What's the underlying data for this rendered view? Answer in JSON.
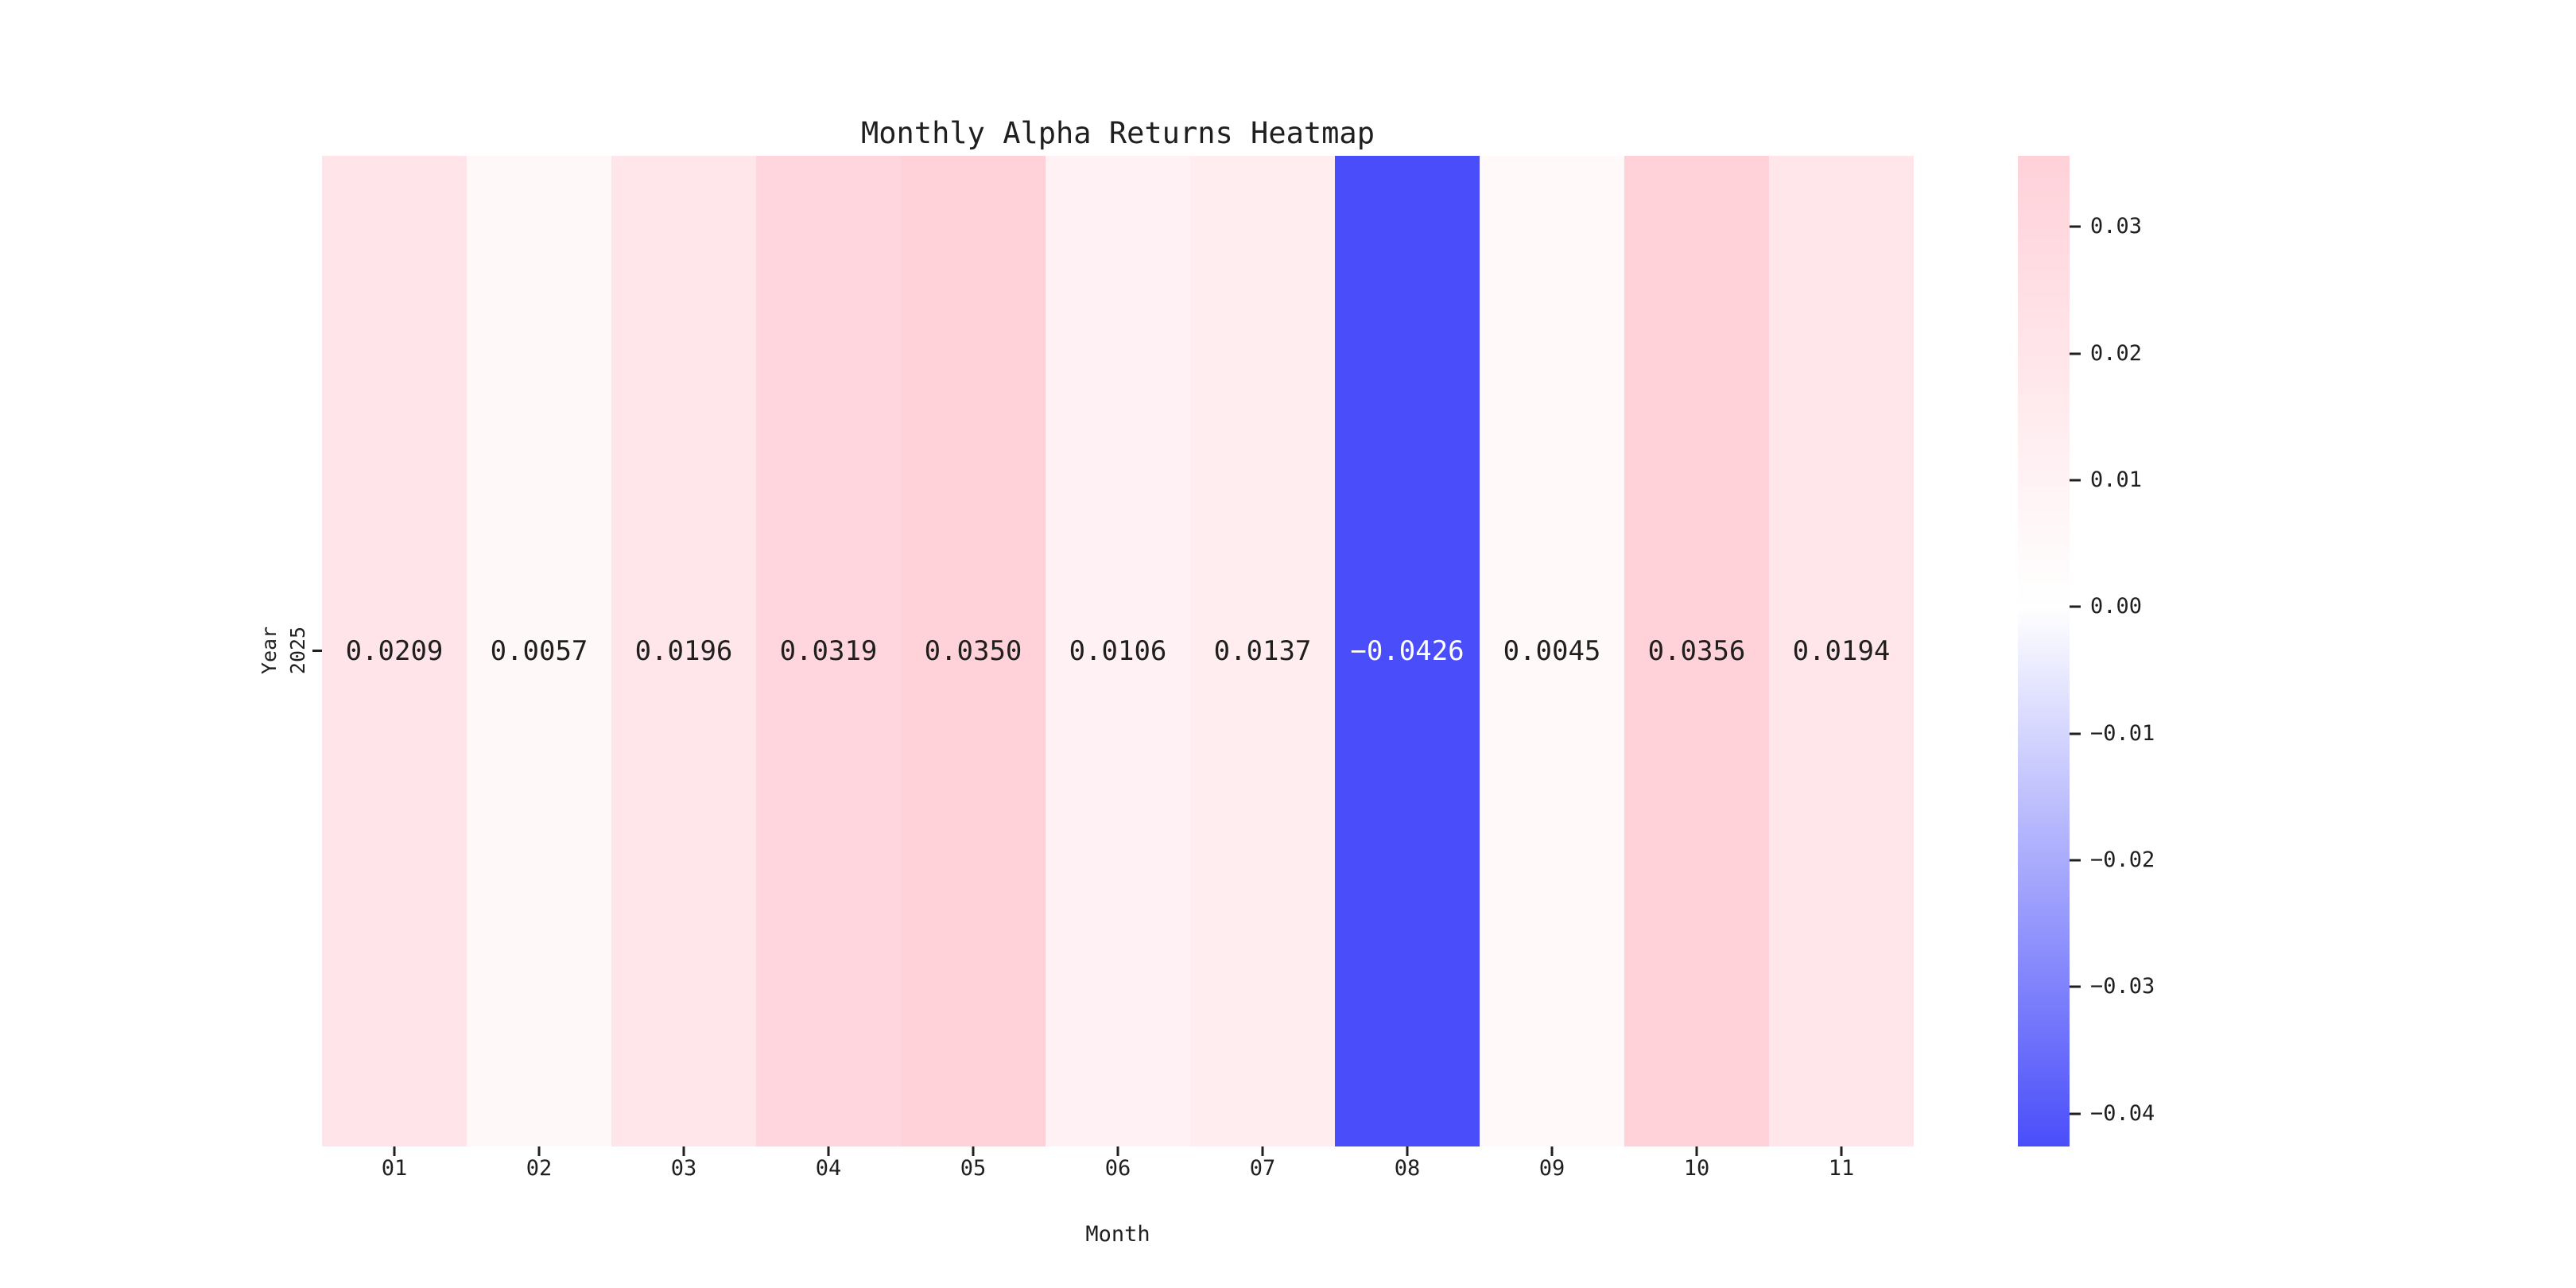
{
  "figure": {
    "background": "#ffffff",
    "text_color": "#1f1f1f",
    "tick_color": "#1f1f1f"
  },
  "chart_data": {
    "type": "heatmap",
    "title": "Monthly Alpha Returns Heatmap",
    "xlabel": "Month",
    "ylabel": "Year",
    "x_categories": [
      "01",
      "02",
      "03",
      "04",
      "05",
      "06",
      "07",
      "08",
      "09",
      "10",
      "11"
    ],
    "y_categories": [
      "2025"
    ],
    "values": [
      [
        0.0209,
        0.0057,
        0.0196,
        0.0319,
        0.035,
        0.0106,
        0.0137,
        -0.0426,
        0.0045,
        0.0356,
        0.0194
      ]
    ],
    "cell_labels": [
      [
        "0.0209",
        "0.0057",
        "0.0196",
        "0.0319",
        "0.0350",
        "0.0106",
        "0.0137",
        "−0.0426",
        "0.0045",
        "0.0356",
        "0.0194"
      ]
    ],
    "cell_colors": [
      [
        "#ffe4e9",
        "#fff8f9",
        "#ffe6ea",
        "#ffd6dd",
        "#ffd2da",
        "#fff1f4",
        "#ffedf0",
        "#4a4efa",
        "#fff9fa",
        "#ffd1d9",
        "#ffe6ea"
      ]
    ],
    "cell_text_colors": [
      [
        "#1f1f1f",
        "#1f1f1f",
        "#1f1f1f",
        "#1f1f1f",
        "#1f1f1f",
        "#1f1f1f",
        "#1f1f1f",
        "#ffffff",
        "#1f1f1f",
        "#1f1f1f",
        "#1f1f1f"
      ]
    ],
    "grid": false,
    "legend": null,
    "colorbar": {
      "vmin": -0.0426,
      "vmax": 0.0356,
      "tick_labels": [
        "0.03",
        "0.02",
        "0.01",
        "0.00",
        "−0.01",
        "−0.02",
        "−0.03",
        "−0.04"
      ],
      "tick_values": [
        0.03,
        0.02,
        0.01,
        0.0,
        -0.01,
        -0.02,
        -0.03,
        -0.04
      ],
      "color_max": "#ffd1d9",
      "color_zero": "#ffffff",
      "color_min": "#4a4efa"
    }
  }
}
